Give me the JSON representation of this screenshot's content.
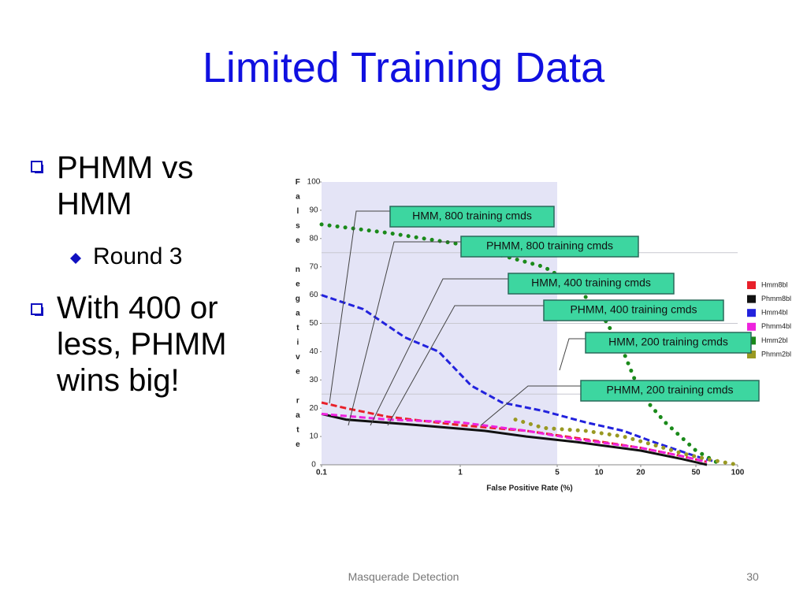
{
  "slide": {
    "title": "Limited Training Data",
    "bullets": [
      {
        "text": "PHMM vs HMM",
        "level": 1
      },
      {
        "text": "Round 3",
        "level": 2
      },
      {
        "text": "With 400 or less, PHMM wins big!",
        "level": 1
      }
    ],
    "footer": "Masquerade Detection",
    "page_number": "30"
  },
  "chart_data": {
    "type": "line",
    "x_label": "False Positive Rate (%)",
    "y_label": "False negative rate",
    "xscale": "log",
    "xlim": [
      0.1,
      100
    ],
    "xticks": [
      0.1,
      1,
      5,
      10,
      20,
      50,
      100
    ],
    "ylim": [
      0,
      100
    ],
    "yticks": [
      0,
      10,
      20,
      30,
      40,
      50,
      60,
      70,
      80,
      90,
      100
    ],
    "hlines": [
      25,
      50,
      75
    ],
    "highlight_x": [
      0.1,
      5
    ],
    "legend": "right",
    "series": [
      {
        "name": "Hmm8bl",
        "color": "#e8202a",
        "style": "dashed",
        "x": [
          0.1,
          0.15,
          0.3,
          1,
          3,
          8,
          20,
          40,
          60
        ],
        "values": [
          22,
          20,
          17,
          14,
          12,
          9,
          6,
          3,
          1
        ]
      },
      {
        "name": "Phmm8bl",
        "color": "#111111",
        "style": "solid",
        "x": [
          0.1,
          0.15,
          0.5,
          1.5,
          3,
          7,
          20,
          40,
          60
        ],
        "values": [
          18,
          16,
          14,
          12,
          10,
          8,
          5,
          2,
          0
        ]
      },
      {
        "name": "Hmm4bl",
        "color": "#2222dd",
        "style": "dashed",
        "x": [
          0.1,
          0.2,
          0.4,
          0.7,
          1.2,
          2,
          4,
          8,
          15,
          25,
          50,
          70
        ],
        "values": [
          60,
          55,
          45,
          40,
          28,
          22,
          19,
          15,
          12,
          8,
          3,
          1
        ]
      },
      {
        "name": "Phmm4bl",
        "color": "#ee22dd",
        "style": "dashed",
        "x": [
          0.1,
          0.3,
          1,
          3,
          7,
          20,
          40,
          60
        ],
        "values": [
          18,
          16,
          15,
          12,
          9,
          6,
          3,
          1
        ]
      },
      {
        "name": "Hmm2bl",
        "color": "#1a8a1a",
        "style": "dotted",
        "x": [
          0.1,
          0.3,
          1,
          2,
          4,
          6,
          10,
          15,
          20,
          30,
          50,
          70
        ],
        "values": [
          85,
          82,
          78,
          74,
          70,
          65,
          55,
          40,
          25,
          15,
          5,
          1
        ]
      },
      {
        "name": "Phmm2bl",
        "color": "#999922",
        "style": "dotted",
        "x": [
          2.5,
          4,
          8,
          15,
          25,
          40,
          60,
          100
        ],
        "values": [
          16,
          13,
          12,
          10,
          7,
          4,
          2,
          0
        ]
      }
    ],
    "annotations": [
      "HMM, 800 training cmds",
      "PHMM, 800 training cmds",
      "HMM, 400 training cmds",
      "PHMM, 400 training cmds",
      "HMM, 200 training cmds",
      "PHMM, 200 training cmds"
    ]
  }
}
